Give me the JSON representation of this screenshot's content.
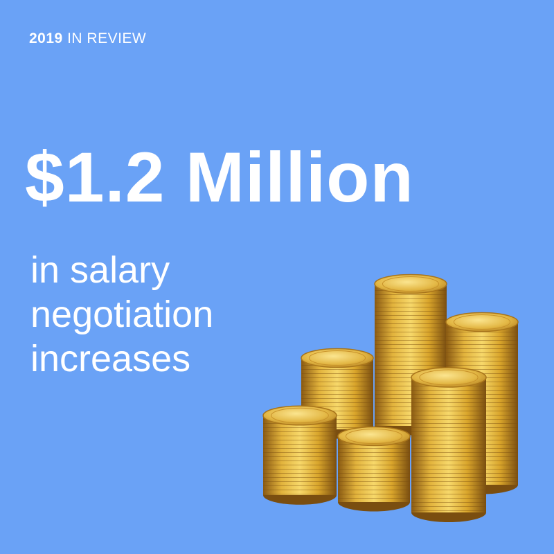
{
  "eyebrow": {
    "year": "2019",
    "label": "IN REVIEW"
  },
  "headline": "$1.2 Million",
  "subhead": [
    "in salary",
    "negotiation",
    "increases"
  ],
  "colors": {
    "background": "#6aa2f6",
    "text": "#ffffff",
    "gold_light": "#f7d86a",
    "gold_mid": "#d9a52b",
    "gold_dark": "#8a5a12"
  },
  "illustration": "stacked-gold-coins"
}
